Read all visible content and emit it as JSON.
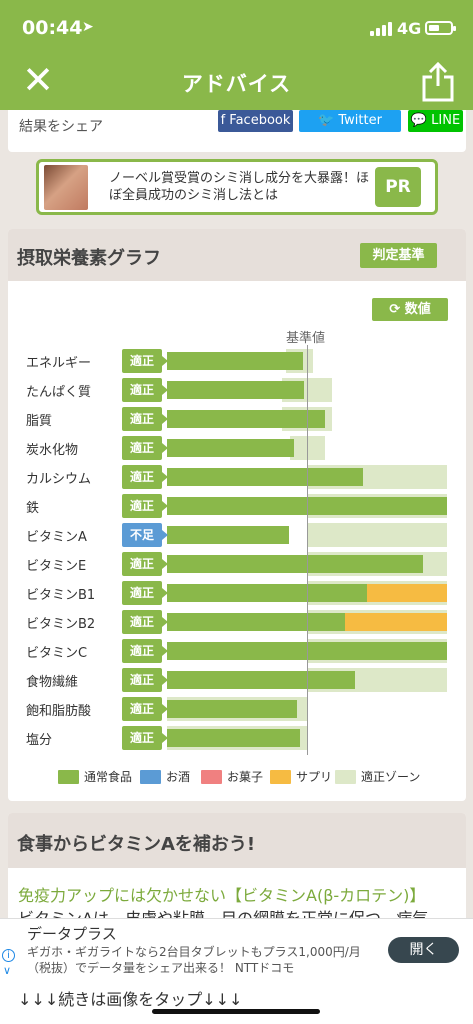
{
  "status": {
    "time": "00:44",
    "network": "4G"
  },
  "nav": {
    "title": "アドバイス"
  },
  "share": {
    "label": "結果をシェア",
    "facebook": "f Facebook",
    "twitter": "Twitter",
    "line": "LINE"
  },
  "ad": {
    "text": "ノーベル賞受賞のシミ消し成分を大暴露！ほぼ全員成功のシミ消し法とは",
    "pr": "PR"
  },
  "graph": {
    "title": "摂取栄養素グラフ",
    "criteria_button": "判定基準",
    "values_button": "数値",
    "reference_label": "基準値",
    "colors": {
      "food": "#8ab84a",
      "alcohol": "#5b9bd5",
      "sweets": "#f08080",
      "supplement": "#f6bb42",
      "zone": "#dde8c8",
      "ok": "#8ab84a",
      "low": "#5b9bd5"
    },
    "legend": [
      {
        "key": "food",
        "label": "通常食品"
      },
      {
        "key": "alcohol",
        "label": "お酒"
      },
      {
        "key": "sweets",
        "label": "お菓子"
      },
      {
        "key": "supplement",
        "label": "サプリ"
      },
      {
        "key": "zone",
        "label": "適正ゾーン"
      }
    ],
    "rows": [
      {
        "label": "エネルギー",
        "status": "適正",
        "state": "ok",
        "food": 0.97,
        "supplement": 0,
        "zone": [
          0.85,
          1.04
        ]
      },
      {
        "label": "たんぱく質",
        "status": "適正",
        "state": "ok",
        "food": 0.98,
        "supplement": 0,
        "zone": [
          0.82,
          1.18
        ]
      },
      {
        "label": "脂質",
        "status": "適正",
        "state": "ok",
        "food": 1.13,
        "supplement": 0,
        "zone": [
          0.82,
          1.18
        ]
      },
      {
        "label": "炭水化物",
        "status": "適正",
        "state": "ok",
        "food": 0.91,
        "supplement": 0,
        "zone": [
          0.88,
          1.13
        ]
      },
      {
        "label": "カルシウム",
        "status": "適正",
        "state": "ok",
        "food": 1.4,
        "supplement": 0,
        "zone": [
          1.0,
          2.0
        ]
      },
      {
        "label": "鉄",
        "status": "適正",
        "state": "ok",
        "food": 2.0,
        "supplement": 0,
        "zone": [
          1.0,
          2.0
        ]
      },
      {
        "label": "ビタミンA",
        "status": "不足",
        "state": "low",
        "food": 0.87,
        "supplement": 0,
        "zone": [
          1.0,
          2.0
        ]
      },
      {
        "label": "ビタミンE",
        "status": "適正",
        "state": "ok",
        "food": 1.83,
        "supplement": 0,
        "zone": [
          1.0,
          2.0
        ]
      },
      {
        "label": "ビタミンB1",
        "status": "適正",
        "state": "ok",
        "food": 1.43,
        "supplement": 0.57,
        "zone": [
          1.0,
          2.0
        ]
      },
      {
        "label": "ビタミンB2",
        "status": "適正",
        "state": "ok",
        "food": 1.27,
        "supplement": 0.73,
        "zone": [
          1.0,
          2.0
        ]
      },
      {
        "label": "ビタミンC",
        "status": "適正",
        "state": "ok",
        "food": 2.0,
        "supplement": 0,
        "zone": [
          1.0,
          2.0
        ]
      },
      {
        "label": "食物繊維",
        "status": "適正",
        "state": "ok",
        "food": 1.34,
        "supplement": 0,
        "zone": [
          1.0,
          2.0
        ]
      },
      {
        "label": "飽和脂肪酸",
        "status": "適正",
        "state": "ok",
        "food": 0.93,
        "supplement": 0,
        "zone": [
          0.0,
          1.0
        ]
      },
      {
        "label": "塩分",
        "status": "適正",
        "state": "ok",
        "food": 0.95,
        "supplement": 0,
        "zone": [
          0.0,
          1.0
        ]
      }
    ]
  },
  "vitamin": {
    "title": "食事からビタミンAを補おう!",
    "subtitle": "免疫力アップには欠かせない【ビタミンA(β-カロテン)】",
    "body": "ビタミンAは、皮膚や粘膜、目の網膜を正常に保つ、病気",
    "more": "↓↓↓続きは画像をタップ↓↓↓"
  },
  "banner": {
    "title": "データプラス",
    "text": "ギガホ・ギガライトなら2台目タブレットもプラス1,000円/月（税抜）でデータ量をシェア出来る！ NTTドコモ",
    "open_button": "開く"
  }
}
